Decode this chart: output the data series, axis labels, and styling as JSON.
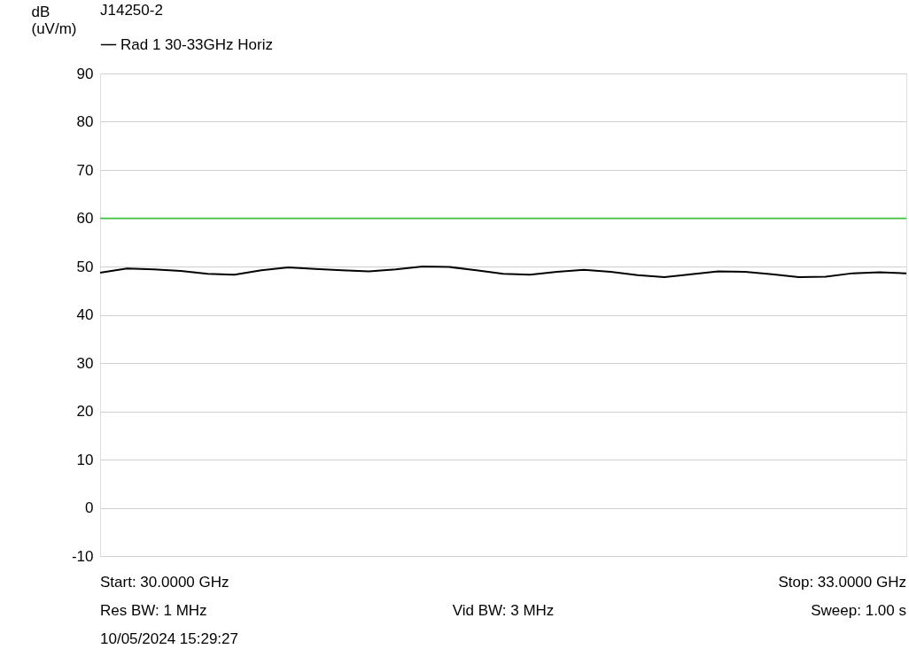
{
  "chart_data": {
    "type": "line",
    "title": "J14250-2",
    "ylabel": "dB\n(uV/m)",
    "categories": [
      null,
      null,
      null,
      null,
      null,
      null,
      null,
      null,
      null,
      null,
      null,
      null,
      null,
      null,
      null,
      null,
      null,
      null,
      null,
      null,
      null,
      null,
      null,
      null,
      null,
      null,
      null,
      null,
      null,
      null,
      null
    ],
    "ylim": [
      -10,
      90
    ],
    "yticks": [
      -10,
      0,
      10,
      20,
      30,
      40,
      50,
      60,
      70,
      80,
      90
    ],
    "grid": "y",
    "tick_labels": "y",
    "legend": "top left",
    "marker": "none",
    "line_style": "solid",
    "series": [
      {
        "name": "Rad 1 30-33GHz Horiz",
        "color": "#000000",
        "values": [
          48.7,
          49.6,
          49.4,
          49.1,
          48.5,
          48.3,
          49.2,
          49.8,
          49.5,
          49.2,
          49.0,
          49.4,
          50.0,
          49.9,
          49.2,
          48.5,
          48.3,
          48.9,
          49.3,
          48.9,
          48.2,
          47.8,
          48.4,
          49.0,
          48.9,
          48.4,
          47.8,
          47.9,
          48.6,
          48.8,
          48.6
        ]
      }
    ],
    "ref_lines": [
      {
        "axis": "y",
        "value": 60,
        "color": "#33cc33"
      }
    ],
    "annotations": [
      "Start: 30.0000 GHz",
      "Stop: 33.0000 GHz",
      "Res BW: 1 MHz",
      "Vid BW: 3 MHz",
      "Sweep: 1.00 s",
      "10/05/2024 15:29:27"
    ]
  }
}
